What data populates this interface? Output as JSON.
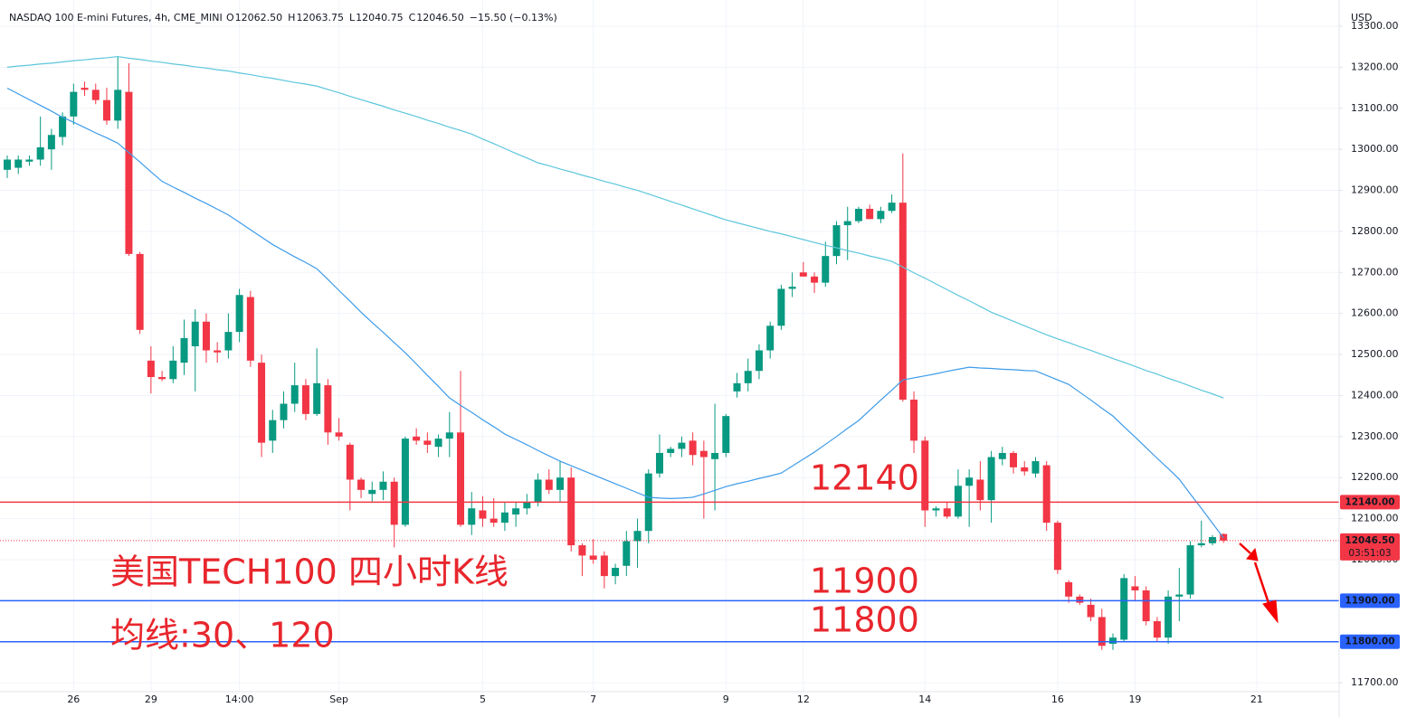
{
  "header": {
    "title": "NASDAQ 100 E-mini Futures, 4h, CME_MINI",
    "ohlc": [
      {
        "label": "O",
        "value": "12062.50"
      },
      {
        "label": "H",
        "value": "12063.75"
      },
      {
        "label": "L",
        "value": "12040.75"
      },
      {
        "label": "C",
        "value": "12046.50"
      }
    ],
    "change": "−15.50 (−0.13%)",
    "currency": "USD"
  },
  "chart_data": {
    "type": "candlestick",
    "categories": [
      null,
      null,
      null,
      null,
      null,
      null,
      "26",
      null,
      null,
      null,
      null,
      null,
      null,
      "29",
      null,
      null,
      null,
      null,
      null,
      null,
      null,
      "14:00",
      null,
      null,
      null,
      null,
      null,
      null,
      null,
      null,
      "Sep",
      null,
      null,
      null,
      null,
      null,
      null,
      null,
      null,
      null,
      null,
      null,
      null,
      "5",
      null,
      null,
      null,
      null,
      null,
      null,
      null,
      null,
      null,
      "7",
      null,
      null,
      null,
      null,
      null,
      null,
      null,
      null,
      null,
      null,
      null,
      "9",
      null,
      null,
      null,
      null,
      null,
      null,
      "12",
      null,
      null,
      null,
      null,
      null,
      null,
      null,
      null,
      null,
      null,
      "14",
      null,
      null,
      null,
      null,
      null,
      null,
      null,
      null,
      null,
      null,
      null,
      "16",
      null,
      null,
      null,
      null,
      null,
      null,
      "19",
      null,
      null,
      null,
      null,
      null,
      null,
      null,
      null,
      null,
      null,
      "21"
    ],
    "open": [
      12950,
      12955,
      12970,
      12975,
      13000,
      13030,
      13080,
      13150,
      13145,
      13120,
      13070,
      13140,
      12745,
      12485,
      12445,
      12440,
      12480,
      12520,
      12580,
      12510,
      12510,
      12555,
      12640,
      12480,
      12290,
      12340,
      12380,
      12425,
      12355,
      12425,
      12310,
      12280,
      12195,
      12160,
      12170,
      12190,
      12085,
      12300,
      12290,
      12275,
      12295,
      12310,
      12085,
      12120,
      12100,
      12090,
      12110,
      12125,
      12140,
      12195,
      12170,
      12200,
      12035,
      12010,
      12010,
      11960,
      11985,
      12045,
      12070,
      12210,
      12260,
      12270,
      12290,
      12265,
      12245,
      12260,
      12410,
      12430,
      12460,
      12510,
      12570,
      12660,
      12700,
      12690,
      12675,
      12740,
      12815,
      12825,
      12855,
      12830,
      12850,
      12870,
      12390,
      12290,
      12120,
      12125,
      12105,
      12180,
      12195,
      12145,
      12245,
      12260,
      12225,
      12210,
      12230,
      12090,
      11945,
      11910,
      11890,
      11860,
      11795,
      11805,
      11935,
      11925,
      11850,
      11810,
      11910,
      11915,
      12035,
      12040,
      12062.5,
      null,
      null,
      null
    ],
    "high": [
      12985,
      12985,
      12985,
      13080,
      13050,
      13090,
      13160,
      13165,
      13160,
      13150,
      13225,
      13210,
      12750,
      12520,
      12460,
      12520,
      12585,
      12610,
      12600,
      12530,
      12600,
      12660,
      12655,
      12500,
      12365,
      12410,
      12480,
      12440,
      12515,
      12440,
      12345,
      12285,
      12200,
      12190,
      12215,
      12200,
      12300,
      12320,
      12310,
      12305,
      12360,
      12460,
      12165,
      12155,
      12150,
      12140,
      12140,
      12160,
      12210,
      12220,
      12240,
      12225,
      12040,
      12050,
      12020,
      11990,
      12070,
      12100,
      12220,
      12305,
      12275,
      12300,
      12310,
      12290,
      12380,
      12355,
      12455,
      12490,
      12525,
      12580,
      12670,
      12700,
      12725,
      12700,
      12775,
      12825,
      12860,
      12860,
      12865,
      12860,
      12890,
      12990,
      12410,
      12300,
      12130,
      12140,
      12220,
      12220,
      12240,
      12265,
      12275,
      12265,
      12240,
      12250,
      12240,
      12095,
      11950,
      11915,
      11905,
      11880,
      11820,
      11965,
      11960,
      11935,
      11860,
      11925,
      11980,
      12045,
      12095,
      12060,
      12063.75,
      null,
      null,
      null
    ],
    "low": [
      12930,
      12940,
      12960,
      12960,
      12950,
      13010,
      13060,
      13130,
      13110,
      13060,
      13050,
      12740,
      12550,
      12405,
      12435,
      12430,
      12450,
      12410,
      12480,
      12480,
      12490,
      12530,
      12470,
      12250,
      12260,
      12320,
      12360,
      12340,
      12350,
      12280,
      12290,
      12120,
      12150,
      12140,
      12145,
      12030,
      12080,
      12280,
      12260,
      12250,
      12250,
      12080,
      12060,
      12080,
      12080,
      12070,
      12080,
      12110,
      12130,
      12160,
      12140,
      12020,
      11960,
      11990,
      11930,
      11940,
      11960,
      11980,
      12040,
      12200,
      12250,
      12250,
      12230,
      12100,
      12120,
      12250,
      12395,
      12410,
      12440,
      12490,
      12560,
      12640,
      12690,
      12650,
      12665,
      12720,
      12730,
      12820,
      12830,
      12820,
      12845,
      12385,
      12260,
      12080,
      12105,
      12100,
      12100,
      12080,
      12120,
      12090,
      12230,
      12210,
      12205,
      12200,
      12070,
      11965,
      11895,
      11890,
      11850,
      11780,
      11780,
      11800,
      11900,
      11840,
      11800,
      11795,
      11850,
      11905,
      12030,
      12035,
      12040.75,
      null,
      null,
      null
    ],
    "close": [
      12975,
      12975,
      12975,
      13005,
      13035,
      13080,
      13140,
      13145,
      13120,
      13070,
      13145,
      12745,
      12560,
      12445,
      12440,
      12485,
      12540,
      12580,
      12510,
      12505,
      12555,
      12645,
      12485,
      12285,
      12340,
      12380,
      12425,
      12355,
      12430,
      12310,
      12300,
      12195,
      12170,
      12170,
      12190,
      12085,
      12295,
      12290,
      12280,
      12295,
      12310,
      12085,
      12125,
      12100,
      12090,
      12115,
      12125,
      12140,
      12195,
      12170,
      12200,
      12035,
      12010,
      12000,
      11960,
      11980,
      12045,
      12070,
      12210,
      12260,
      12270,
      12285,
      12255,
      12250,
      12260,
      12350,
      12430,
      12460,
      12510,
      12570,
      12660,
      12665,
      12690,
      12675,
      12740,
      12815,
      12825,
      12855,
      12830,
      12850,
      12870,
      12390,
      12290,
      12120,
      12125,
      12105,
      12180,
      12200,
      12145,
      12250,
      12260,
      12225,
      12215,
      12240,
      12090,
      11975,
      11910,
      11895,
      11860,
      11790,
      11810,
      11955,
      11925,
      11850,
      11810,
      11910,
      11915,
      12035,
      12040,
      12055,
      12046.5,
      null,
      null,
      null
    ],
    "up_color": "#089981",
    "down_color": "#f23645",
    "series": [
      {
        "color": "#5cc6dc",
        "values": [
          13200,
          13203,
          13205,
          13208,
          13210,
          13213,
          13216,
          13218,
          13221,
          13223,
          13226,
          13222,
          13219,
          13215,
          13212,
          13208,
          13205,
          13201,
          13198,
          13194,
          13191,
          13186,
          13182,
          13177,
          13173,
          13168,
          13163,
          13159,
          13154,
          13146,
          13138,
          13129,
          13121,
          13113,
          13105,
          13096,
          13088,
          13080,
          13071,
          13063,
          13054,
          13046,
          13037,
          13025,
          13014,
          13002,
          12990,
          12979,
          12967,
          12960,
          12952,
          12945,
          12937,
          12930,
          12922,
          12915,
          12907,
          12900,
          12891,
          12882,
          12873,
          12864,
          12855,
          12846,
          12837,
          12828,
          12821,
          12814,
          12807,
          12800,
          12794,
          12787,
          12780,
          12773,
          12766,
          12760,
          12753,
          12747,
          12740,
          12734,
          12727,
          12713,
          12699,
          12686,
          12672,
          12658,
          12644,
          12631,
          12617,
          12603,
          12592,
          12581,
          12570,
          12559,
          12548,
          12538,
          12529,
          12519,
          12510,
          12500,
          12490,
          12481,
          12471,
          12461,
          12452,
          12442,
          12433,
          12423,
          12413,
          12404,
          12394,
          null,
          null,
          null
        ]
      },
      {
        "color": "#3d9be9",
        "values": [
          13149,
          13135,
          13121,
          13107,
          13093,
          13078,
          13066,
          13053,
          13040,
          13028,
          13015,
          12992,
          12969,
          12945,
          12922,
          12908,
          12895,
          12881,
          12868,
          12854,
          12840,
          12822,
          12804,
          12786,
          12768,
          12753,
          12738,
          12724,
          12709,
          12683,
          12656,
          12630,
          12603,
          12578,
          12554,
          12529,
          12504,
          12477,
          12449,
          12422,
          12394,
          12376,
          12359,
          12341,
          12324,
          12306,
          12293,
          12280,
          12266,
          12253,
          12240,
          12229,
          12218,
          12207,
          12196,
          12185,
          12174,
          12163,
          12152,
          12150,
          12149,
          12150,
          12152,
          12160,
          12169,
          12178,
          12185,
          12191,
          12198,
          12204,
          12211,
          12228,
          12245,
          12262,
          12281,
          12300,
          12320,
          12339,
          12364,
          12389,
          12413,
          12438,
          12443,
          12448,
          12453,
          12459,
          12464,
          12469,
          12467,
          12466,
          12464,
          12463,
          12461,
          12460,
          12449,
          12438,
          12427,
          12408,
          12389,
          12369,
          12350,
          12324,
          12299,
          12273,
          12247,
          12222,
          12196,
          12160,
          12125,
          12089,
          12053,
          null,
          null,
          null
        ]
      }
    ],
    "ylim": [
      11665,
      13300
    ],
    "yticks": [
      {
        "value": 11700,
        "label": "11700.00"
      },
      {
        "value": 11800,
        "label": "11800.00"
      },
      {
        "value": 11900,
        "label": "11900.00"
      },
      {
        "value": 12000,
        "label": "12000.00"
      },
      {
        "value": 12100,
        "label": "12100.00"
      },
      {
        "value": 12200,
        "label": "12200.00"
      },
      {
        "value": 12300,
        "label": "12300.00"
      },
      {
        "value": 12400,
        "label": "12400.00"
      },
      {
        "value": 12500,
        "label": "12500.00"
      },
      {
        "value": 12600,
        "label": "12600.00"
      },
      {
        "value": 12700,
        "label": "12700.00"
      },
      {
        "value": 12800,
        "label": "12800.00"
      },
      {
        "value": 12900,
        "label": "12900.00"
      },
      {
        "value": 13000,
        "label": "13000.00"
      },
      {
        "value": 13100,
        "label": "13100.00"
      },
      {
        "value": 13200,
        "label": "13200.00"
      },
      {
        "value": 13300,
        "label": "13300.00"
      }
    ],
    "grid": true,
    "levels": [
      {
        "value": 12140,
        "label": "12140.00",
        "color": "#f23645"
      },
      {
        "value": 11900,
        "label": "11900.00",
        "color": "#2962ff"
      },
      {
        "value": 11800,
        "label": "11800.00",
        "color": "#2962ff"
      }
    ],
    "last_price": {
      "value": 12046.5,
      "label": "12046.50",
      "countdown": "03:51:03",
      "color": "#f23645"
    },
    "annotations": [
      "12140",
      "11900",
      "11800",
      "美国TECH100 四小时K线",
      "均线:30、120"
    ]
  }
}
